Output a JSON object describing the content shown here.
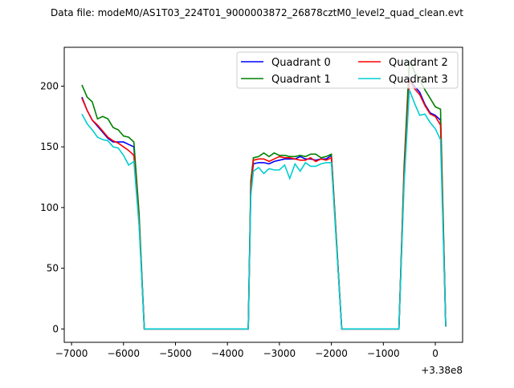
{
  "chart_data": {
    "type": "line",
    "title": "Data file: modeM0/AS1T03_224T01_9000003872_26878cztM0_level2_quad_clean.evt",
    "xlabel": "",
    "ylabel": "",
    "x_offset_text": "+3.38e8",
    "xlim": [
      -7140,
      525
    ],
    "ylim": [
      -11,
      232
    ],
    "xticks": [
      -7000,
      -6000,
      -5000,
      -4000,
      -3000,
      -2000,
      -1000,
      0
    ],
    "xtick_labels": [
      "−7000",
      "−6000",
      "−5000",
      "−4000",
      "−3000",
      "−2000",
      "−1000",
      "0"
    ],
    "yticks": [
      0,
      50,
      100,
      150,
      200
    ],
    "ytick_labels": [
      "0",
      "50",
      "100",
      "150",
      "200"
    ],
    "grid": false,
    "legend_position": "top-right",
    "x": [
      -6800,
      -6700,
      -6600,
      -6500,
      -6400,
      -6300,
      -6200,
      -6100,
      -6000,
      -5900,
      -5800,
      -5700,
      -5600,
      -3600,
      -3550,
      -3500,
      -3400,
      -3300,
      -3200,
      -3100,
      -3000,
      -2900,
      -2800,
      -2700,
      -2600,
      -2500,
      -2400,
      -2300,
      -2200,
      -2100,
      -2000,
      -1900,
      -1800,
      -700,
      -600,
      -500,
      -400,
      -300,
      -200,
      -100,
      0,
      100,
      150,
      200
    ],
    "series": [
      {
        "name": "Quadrant 0",
        "color": "#0000ff",
        "values": [
          191,
          180,
          172,
          167,
          162,
          157,
          154,
          154,
          154,
          152,
          150,
          90,
          0,
          0,
          118,
          136,
          137,
          137,
          136,
          138,
          139,
          140,
          140,
          140,
          142,
          140,
          140,
          139,
          140,
          140,
          143,
          70,
          0,
          0,
          130,
          207,
          200,
          195,
          185,
          178,
          176,
          172,
          90,
          2
        ]
      },
      {
        "name": "Quadrant 1",
        "color": "#008000",
        "values": [
          201,
          191,
          187,
          173,
          175,
          173,
          166,
          164,
          159,
          158,
          154,
          95,
          0,
          0,
          122,
          141,
          142,
          145,
          142,
          145,
          143,
          143,
          142,
          142,
          143,
          142,
          144,
          144,
          141,
          142,
          144,
          72,
          0,
          0,
          135,
          221,
          212,
          205,
          197,
          190,
          183,
          181,
          95,
          2
        ]
      },
      {
        "name": "Quadrant 2",
        "color": "#ff0000",
        "values": [
          190,
          180,
          172,
          168,
          163,
          158,
          155,
          153,
          150,
          147,
          143,
          88,
          0,
          0,
          115,
          139,
          140,
          140,
          138,
          140,
          142,
          141,
          141,
          140,
          139,
          139,
          141,
          138,
          140,
          139,
          141,
          70,
          0,
          0,
          128,
          205,
          198,
          193,
          184,
          177,
          175,
          168,
          88,
          2
        ]
      },
      {
        "name": "Quadrant 3",
        "color": "#00ced1",
        "values": [
          177,
          169,
          164,
          158,
          156,
          155,
          150,
          149,
          143,
          135,
          138,
          85,
          0,
          0,
          110,
          130,
          133,
          128,
          132,
          131,
          131,
          135,
          124,
          136,
          130,
          137,
          134,
          134,
          136,
          137,
          137,
          68,
          0,
          0,
          120,
          197,
          186,
          176,
          177,
          170,
          165,
          156,
          80,
          2
        ]
      }
    ]
  }
}
